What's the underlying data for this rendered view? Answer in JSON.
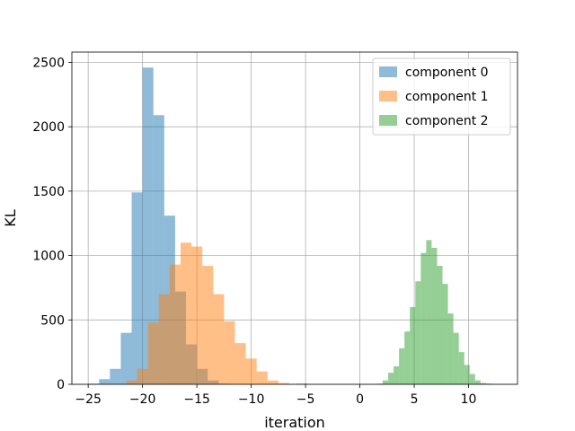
{
  "chart_data": {
    "type": "histogram",
    "title": "",
    "xlabel": "iteration",
    "ylabel": "KL",
    "xlim": [
      -26.5,
      14.5
    ],
    "ylim": [
      0,
      2580
    ],
    "xticks": [
      -25,
      -20,
      -15,
      -10,
      -5,
      0,
      5,
      10
    ],
    "yticks": [
      0,
      500,
      1000,
      1500,
      2000,
      2500
    ],
    "grid": true,
    "legend_position": "top-right",
    "series": [
      {
        "name": "component 0",
        "color": "#1f77b4",
        "opacity": 0.5,
        "bins": [
          {
            "x0": -25.0,
            "x1": -24.0,
            "count": 5
          },
          {
            "x0": -24.0,
            "x1": -23.0,
            "count": 40
          },
          {
            "x0": -23.0,
            "x1": -22.0,
            "count": 120
          },
          {
            "x0": -22.0,
            "x1": -21.0,
            "count": 400
          },
          {
            "x0": -21.0,
            "x1": -20.0,
            "count": 1490
          },
          {
            "x0": -20.0,
            "x1": -19.0,
            "count": 2460
          },
          {
            "x0": -19.0,
            "x1": -18.0,
            "count": 2090
          },
          {
            "x0": -18.0,
            "x1": -17.0,
            "count": 1310
          },
          {
            "x0": -17.0,
            "x1": -16.0,
            "count": 720
          },
          {
            "x0": -16.0,
            "x1": -15.0,
            "count": 310
          },
          {
            "x0": -15.0,
            "x1": -14.0,
            "count": 120
          },
          {
            "x0": -14.0,
            "x1": -13.0,
            "count": 30
          },
          {
            "x0": -13.0,
            "x1": -12.0,
            "count": 5
          },
          {
            "x0": -5.8,
            "x1": -4.8,
            "count": 5
          }
        ]
      },
      {
        "name": "component 1",
        "color": "#ff7f0e",
        "opacity": 0.5,
        "bins": [
          {
            "x0": -21.5,
            "x1": -20.5,
            "count": 30
          },
          {
            "x0": -20.5,
            "x1": -19.5,
            "count": 120
          },
          {
            "x0": -19.5,
            "x1": -18.5,
            "count": 480
          },
          {
            "x0": -18.5,
            "x1": -17.5,
            "count": 700
          },
          {
            "x0": -17.5,
            "x1": -16.5,
            "count": 930
          },
          {
            "x0": -16.5,
            "x1": -15.5,
            "count": 1100
          },
          {
            "x0": -15.5,
            "x1": -14.5,
            "count": 1070
          },
          {
            "x0": -14.5,
            "x1": -13.5,
            "count": 920
          },
          {
            "x0": -13.5,
            "x1": -12.5,
            "count": 700
          },
          {
            "x0": -12.5,
            "x1": -11.5,
            "count": 490
          },
          {
            "x0": -11.5,
            "x1": -10.5,
            "count": 320
          },
          {
            "x0": -10.5,
            "x1": -9.5,
            "count": 200
          },
          {
            "x0": -9.5,
            "x1": -8.5,
            "count": 100
          },
          {
            "x0": -8.5,
            "x1": -7.5,
            "count": 30
          },
          {
            "x0": -7.5,
            "x1": -6.5,
            "count": 10
          }
        ]
      },
      {
        "name": "component 2",
        "color": "#2ca02c",
        "opacity": 0.5,
        "bins": [
          {
            "x0": 1.6,
            "x1": 2.1,
            "count": 5
          },
          {
            "x0": 2.1,
            "x1": 2.6,
            "count": 30
          },
          {
            "x0": 2.6,
            "x1": 3.1,
            "count": 90
          },
          {
            "x0": 3.1,
            "x1": 3.6,
            "count": 140
          },
          {
            "x0": 3.6,
            "x1": 4.1,
            "count": 280
          },
          {
            "x0": 4.1,
            "x1": 4.6,
            "count": 410
          },
          {
            "x0": 4.6,
            "x1": 5.1,
            "count": 600
          },
          {
            "x0": 5.1,
            "x1": 5.6,
            "count": 800
          },
          {
            "x0": 5.6,
            "x1": 6.1,
            "count": 1020
          },
          {
            "x0": 6.1,
            "x1": 6.6,
            "count": 1120
          },
          {
            "x0": 6.6,
            "x1": 7.1,
            "count": 1060
          },
          {
            "x0": 7.1,
            "x1": 7.6,
            "count": 920
          },
          {
            "x0": 7.6,
            "x1": 8.1,
            "count": 780
          },
          {
            "x0": 8.1,
            "x1": 8.6,
            "count": 550
          },
          {
            "x0": 8.6,
            "x1": 9.1,
            "count": 400
          },
          {
            "x0": 9.1,
            "x1": 9.6,
            "count": 250
          },
          {
            "x0": 9.6,
            "x1": 10.1,
            "count": 150
          },
          {
            "x0": 10.1,
            "x1": 10.6,
            "count": 80
          },
          {
            "x0": 10.6,
            "x1": 11.1,
            "count": 30
          },
          {
            "x0": 11.1,
            "x1": 11.6,
            "count": 10
          },
          {
            "x0": 11.6,
            "x1": 12.1,
            "count": 5
          }
        ]
      }
    ]
  }
}
